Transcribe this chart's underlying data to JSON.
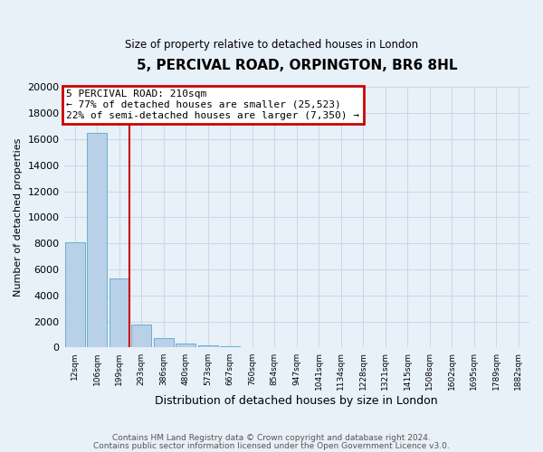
{
  "title": "5, PERCIVAL ROAD, ORPINGTON, BR6 8HL",
  "subtitle": "Size of property relative to detached houses in London",
  "xlabel": "Distribution of detached houses by size in London",
  "ylabel": "Number of detached properties",
  "bar_labels": [
    "12sqm",
    "106sqm",
    "199sqm",
    "293sqm",
    "386sqm",
    "480sqm",
    "573sqm",
    "667sqm",
    "760sqm",
    "854sqm",
    "947sqm",
    "1041sqm",
    "1134sqm",
    "1228sqm",
    "1321sqm",
    "1415sqm",
    "1508sqm",
    "1602sqm",
    "1695sqm",
    "1789sqm",
    "1882sqm"
  ],
  "bar_values": [
    8100,
    16500,
    5300,
    1800,
    700,
    300,
    150,
    80,
    50,
    30,
    20,
    10,
    10,
    10,
    10,
    10,
    10,
    10,
    10,
    10,
    5
  ],
  "bar_color": "#b8d0e8",
  "bar_edge_color": "#6baed6",
  "vline_index": 2,
  "annotation_line1": "5 PERCIVAL ROAD: 210sqm",
  "annotation_line2": "← 77% of detached houses are smaller (25,523)",
  "annotation_line3": "22% of semi-detached houses are larger (7,350) →",
  "annotation_box_color": "#ffffff",
  "annotation_box_edge": "#cc0000",
  "vline_color": "#cc0000",
  "ylim": [
    0,
    20000
  ],
  "yticks": [
    0,
    2000,
    4000,
    6000,
    8000,
    10000,
    12000,
    14000,
    16000,
    18000,
    20000
  ],
  "grid_color": "#c8d8e8",
  "bg_color": "#e8f0f8",
  "footnote1": "Contains HM Land Registry data © Crown copyright and database right 2024.",
  "footnote2": "Contains public sector information licensed under the Open Government Licence v3.0."
}
